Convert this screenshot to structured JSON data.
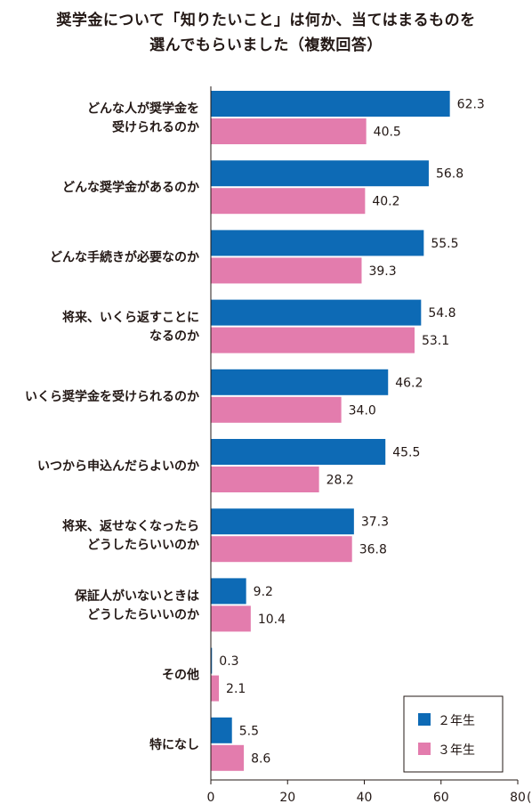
{
  "title": {
    "line1": "奨学金について「知りたいこと」は何か、当てはまるものを",
    "line2": "選んでもらいました（複数回答）"
  },
  "chart_data": {
    "type": "bar",
    "orientation": "horizontal",
    "categories": [
      [
        "どんな人が奨学金を",
        "受けられるのか"
      ],
      [
        "どんな奨学金があるのか"
      ],
      [
        "どんな手続きが必要なのか"
      ],
      [
        "将来、いくら返すことに",
        "なるのか"
      ],
      [
        "いくら奨学金を受けられるのか"
      ],
      [
        "いつから申込んだらよいのか"
      ],
      [
        "将来、返せなくなったら",
        "どうしたらいいのか"
      ],
      [
        "保証人がいないときは",
        "どうしたらいいのか"
      ],
      [
        "その他"
      ],
      [
        "特になし"
      ]
    ],
    "series": [
      {
        "name": "２年生",
        "color": "#0d6ab5",
        "values": [
          62.3,
          56.8,
          55.5,
          54.8,
          46.2,
          45.5,
          37.3,
          9.2,
          0.3,
          5.5
        ],
        "labels": [
          "62.3",
          "56.8",
          "55.5",
          "54.8",
          "46.2",
          "45.5",
          "37.3",
          "9.2",
          "0.3",
          "5.5"
        ]
      },
      {
        "name": "３年生",
        "color": "#e37cad",
        "values": [
          40.5,
          40.2,
          39.3,
          53.1,
          34.0,
          28.2,
          36.8,
          10.4,
          2.1,
          8.6
        ],
        "labels": [
          "40.5",
          "40.2",
          "39.3",
          "53.1",
          "34.0",
          "28.2",
          "36.8",
          "10.4",
          "2.1",
          "8.6"
        ]
      }
    ],
    "xlim": [
      0,
      80
    ],
    "xticks": [
      "0",
      "20",
      "40",
      "60",
      "80"
    ],
    "xunit": "(%)",
    "legend_position": "bottom-right",
    "grid": false
  }
}
